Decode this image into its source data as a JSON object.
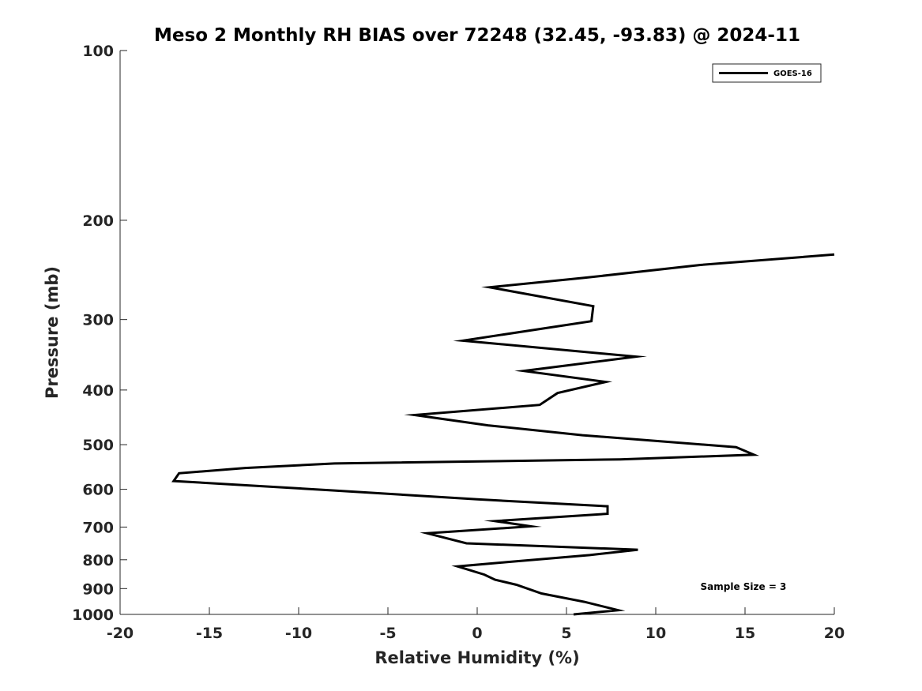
{
  "chart_data": {
    "type": "line",
    "title": "Meso 2 Monthly RH BIAS over 72248 (32.45, -93.83) @ 2024-11",
    "xlabel": "Relative Humidity (%)",
    "ylabel": "Pressure (mb)",
    "xlim": [
      -20,
      20
    ],
    "ylim": [
      100,
      1000
    ],
    "y_scale": "log",
    "y_reversed": true,
    "grid": false,
    "x_ticks": [
      -20,
      -15,
      -10,
      -5,
      0,
      5,
      10,
      15,
      20
    ],
    "x_tick_labels": [
      "-20",
      "-15",
      "-10",
      "-5",
      "0",
      "5",
      "10",
      "15",
      "20"
    ],
    "y_ticks": [
      100,
      200,
      300,
      400,
      500,
      600,
      700,
      800,
      900,
      1000
    ],
    "y_tick_labels": [
      "100",
      "200",
      "300",
      "400",
      "500",
      "600",
      "700",
      "800",
      "900",
      "1000"
    ],
    "legend_position": "top-right",
    "series": [
      {
        "name": "GOES-16",
        "color": "#000000",
        "points": [
          {
            "x": 20.0,
            "y": 230
          },
          {
            "x": 12.5,
            "y": 240
          },
          {
            "x": 6.0,
            "y": 253
          },
          {
            "x": 0.7,
            "y": 263
          },
          {
            "x": 6.5,
            "y": 284
          },
          {
            "x": 6.4,
            "y": 302
          },
          {
            "x": -0.8,
            "y": 327
          },
          {
            "x": 8.9,
            "y": 349
          },
          {
            "x": 2.6,
            "y": 370
          },
          {
            "x": 7.2,
            "y": 387
          },
          {
            "x": 4.5,
            "y": 405
          },
          {
            "x": 3.5,
            "y": 425
          },
          {
            "x": -3.5,
            "y": 443
          },
          {
            "x": 0.6,
            "y": 462
          },
          {
            "x": 5.9,
            "y": 481
          },
          {
            "x": 14.5,
            "y": 505
          },
          {
            "x": 15.5,
            "y": 521
          },
          {
            "x": 8.0,
            "y": 531
          },
          {
            "x": -8.0,
            "y": 540
          },
          {
            "x": -13.0,
            "y": 550
          },
          {
            "x": -16.7,
            "y": 562
          },
          {
            "x": -17.0,
            "y": 580
          },
          {
            "x": -8.0,
            "y": 603
          },
          {
            "x": 0.0,
            "y": 625
          },
          {
            "x": 7.3,
            "y": 643
          },
          {
            "x": 7.3,
            "y": 663
          },
          {
            "x": 1.0,
            "y": 683
          },
          {
            "x": 3.0,
            "y": 698
          },
          {
            "x": -2.8,
            "y": 718
          },
          {
            "x": -0.6,
            "y": 748
          },
          {
            "x": 9.0,
            "y": 768
          },
          {
            "x": 6.3,
            "y": 785
          },
          {
            "x": 1.6,
            "y": 808
          },
          {
            "x": -1.1,
            "y": 822
          },
          {
            "x": 0.4,
            "y": 850
          },
          {
            "x": 1.0,
            "y": 868
          },
          {
            "x": 2.2,
            "y": 886
          },
          {
            "x": 3.6,
            "y": 918
          },
          {
            "x": 6.0,
            "y": 950
          },
          {
            "x": 7.9,
            "y": 983
          },
          {
            "x": 5.4,
            "y": 1000
          }
        ]
      }
    ],
    "annotations": [
      {
        "text": "Sample Size = 3",
        "x": 12.5,
        "y": 905
      }
    ]
  }
}
